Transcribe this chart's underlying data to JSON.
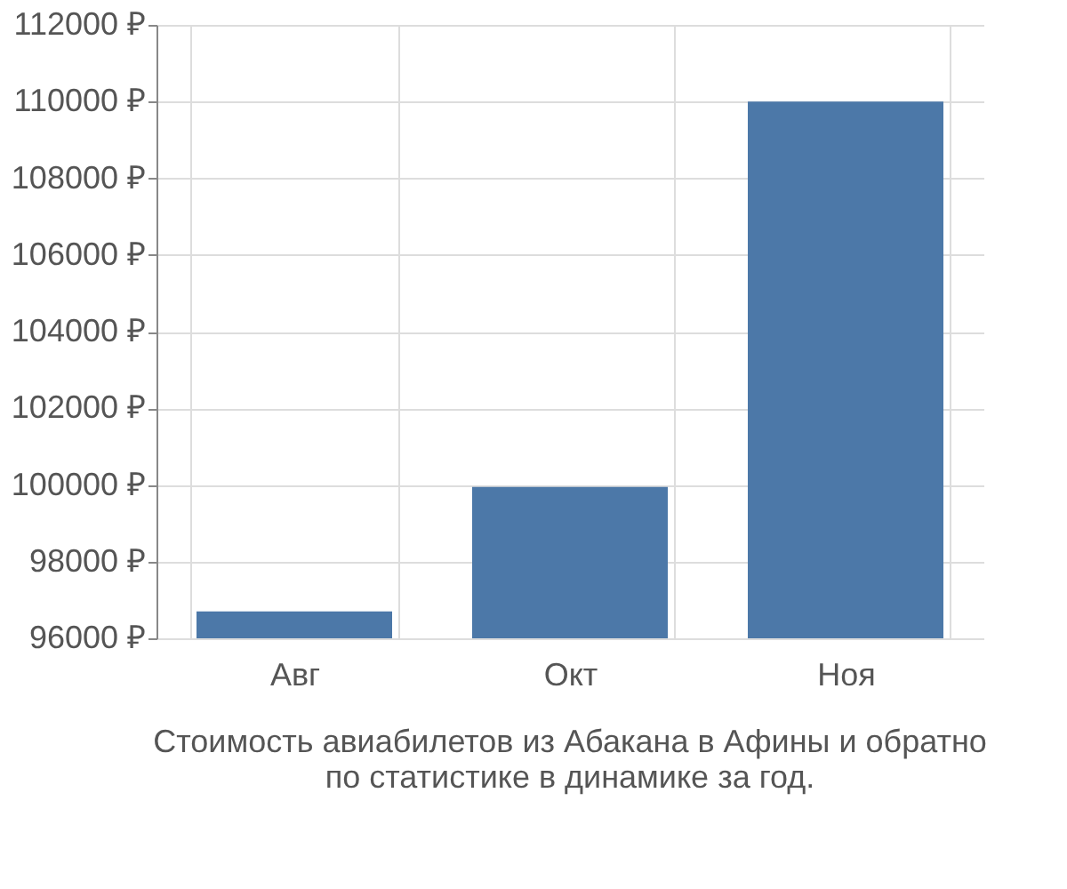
{
  "chart_data": {
    "type": "bar",
    "title": "Стоимость авиабилетов из Абакана в Афины и обратно\nпо статистике в динамике за год.",
    "categories": [
      "Авг",
      "Окт",
      "Ноя"
    ],
    "values": [
      96700,
      99950,
      110000
    ],
    "color": "#4c78a8",
    "ylim": [
      96000,
      112000
    ],
    "yticks": [
      {
        "value": 96000,
        "label": "96000 ₽"
      },
      {
        "value": 98000,
        "label": "98000 ₽"
      },
      {
        "value": 100000,
        "label": "100000 ₽"
      },
      {
        "value": 102000,
        "label": "102000 ₽"
      },
      {
        "value": 104000,
        "label": "104000 ₽"
      },
      {
        "value": 106000,
        "label": "106000 ₽"
      },
      {
        "value": 108000,
        "label": "108000 ₽"
      },
      {
        "value": 110000,
        "label": "110000 ₽"
      },
      {
        "value": 112000,
        "label": "112000 ₽"
      }
    ],
    "grid": true
  }
}
